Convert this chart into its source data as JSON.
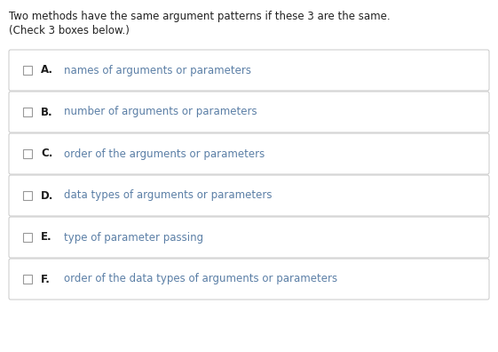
{
  "title_line1": "Two methods have the same argument patterns if these 3 are the same.",
  "title_line2": "(Check 3 boxes below.)",
  "options": [
    {
      "label": "A.",
      "text": "names of arguments or parameters"
    },
    {
      "label": "B.",
      "text": "number of arguments or parameters"
    },
    {
      "label": "C.",
      "text": "order of the arguments or parameters"
    },
    {
      "label": "D.",
      "text": "data types of arguments or parameters"
    },
    {
      "label": "E.",
      "text": "type of parameter passing"
    },
    {
      "label": "F.",
      "text": "order of the data types of arguments or parameters"
    }
  ],
  "bg_color": "#ffffff",
  "box_facecolor": "#ffffff",
  "box_edgecolor": "#c8c8c8",
  "title_color": "#222222",
  "label_color": "#1a1a1a",
  "text_color": "#5b7fa6",
  "checkbox_edgecolor": "#999999",
  "title_fontsize": 8.5,
  "option_fontsize": 8.5,
  "fig_width": 5.61,
  "fig_height": 3.96,
  "dpi": 100
}
